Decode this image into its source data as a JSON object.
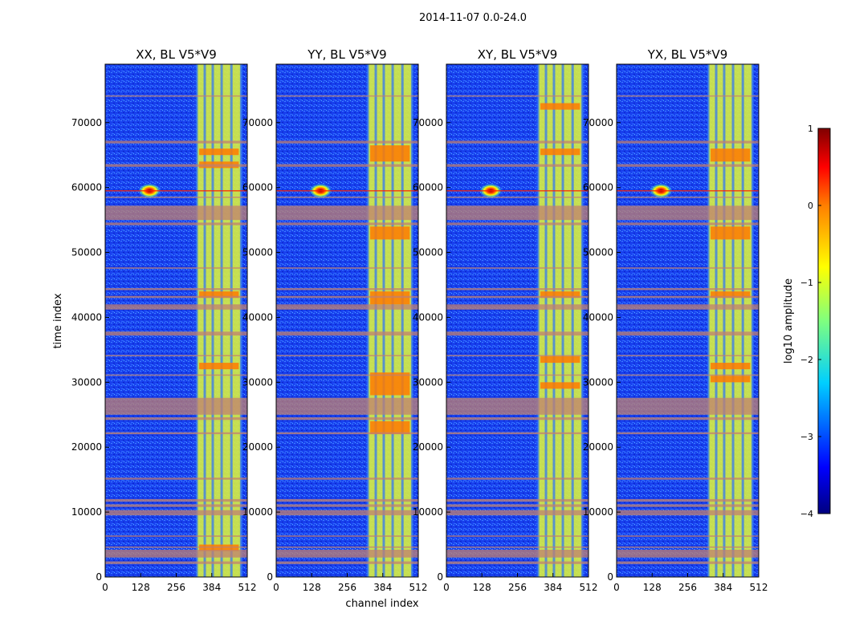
{
  "chart_data": {
    "type": "heatmap",
    "suptitle": "2014-11-07 0.0-24.0",
    "xlabel": "channel index",
    "ylabel": "time index",
    "xlim": [
      0,
      512
    ],
    "ylim": [
      0,
      79000
    ],
    "x_ticks": [
      "0",
      "128",
      "256",
      "384",
      "512"
    ],
    "y_ticks": [
      "0",
      "10000",
      "20000",
      "30000",
      "40000",
      "50000",
      "60000",
      "70000"
    ],
    "y_tick_values": [
      0,
      10000,
      20000,
      30000,
      40000,
      50000,
      60000,
      70000
    ],
    "x_tick_values": [
      0,
      128,
      256,
      384,
      512
    ],
    "panels": [
      {
        "title": "XX, BL V5*V9",
        "hot_rows": [
          [
            65000,
            66000
          ],
          [
            63000,
            64000
          ],
          [
            43000,
            44000
          ],
          [
            32000,
            33000
          ],
          [
            4000,
            5000
          ]
        ]
      },
      {
        "title": "YY, BL V5*V9",
        "hot_rows": [
          [
            64000,
            66500
          ],
          [
            52000,
            54000
          ],
          [
            42000,
            44000
          ],
          [
            28000,
            31500
          ],
          [
            22000,
            24000
          ]
        ]
      },
      {
        "title": "XY, BL V5*V9",
        "hot_rows": [
          [
            72000,
            73000
          ],
          [
            65000,
            66000
          ],
          [
            43000,
            44000
          ],
          [
            33000,
            34000
          ],
          [
            29000,
            30000
          ]
        ]
      },
      {
        "title": "YX, BL V5*V9",
        "hot_rows": [
          [
            64000,
            66000
          ],
          [
            52000,
            54000
          ],
          [
            43000,
            44000
          ],
          [
            32000,
            33000
          ],
          [
            30000,
            31000
          ]
        ]
      }
    ],
    "bright_band_channels": [
      330,
      490
    ],
    "flagged_rows": [
      [
        2000,
        2400
      ],
      [
        3000,
        4200
      ],
      [
        4500,
        4700
      ],
      [
        6200,
        6400
      ],
      [
        9500,
        10300
      ],
      [
        10800,
        11200
      ],
      [
        11600,
        12000
      ],
      [
        15000,
        15300
      ],
      [
        22000,
        22300
      ],
      [
        24200,
        24600
      ],
      [
        25000,
        27600
      ],
      [
        31000,
        31200
      ],
      [
        34000,
        34200
      ],
      [
        37200,
        37800
      ],
      [
        41200,
        42000
      ],
      [
        43000,
        43300
      ],
      [
        44200,
        44500
      ],
      [
        47500,
        47700
      ],
      [
        54200,
        54600
      ],
      [
        55000,
        57200
      ],
      [
        58400,
        58600
      ],
      [
        63200,
        63600
      ],
      [
        66800,
        67200
      ],
      [
        74000,
        74200
      ]
    ],
    "hotspot": {
      "channel": 160,
      "time": 59500
    },
    "colorbar": {
      "label": "log10 amplitude",
      "range": [
        -4,
        1
      ],
      "ticks": [
        "1",
        "0",
        "−1",
        "−2",
        "−3",
        "−4"
      ],
      "tick_values": [
        1,
        0,
        -1,
        -2,
        -3,
        -4
      ],
      "colors": [
        "#00007f",
        "#0000ff",
        "#007fff",
        "#00ffff",
        "#7fff7f",
        "#ffff00",
        "#ff7f00",
        "#ff0000",
        "#7f0000"
      ]
    }
  }
}
